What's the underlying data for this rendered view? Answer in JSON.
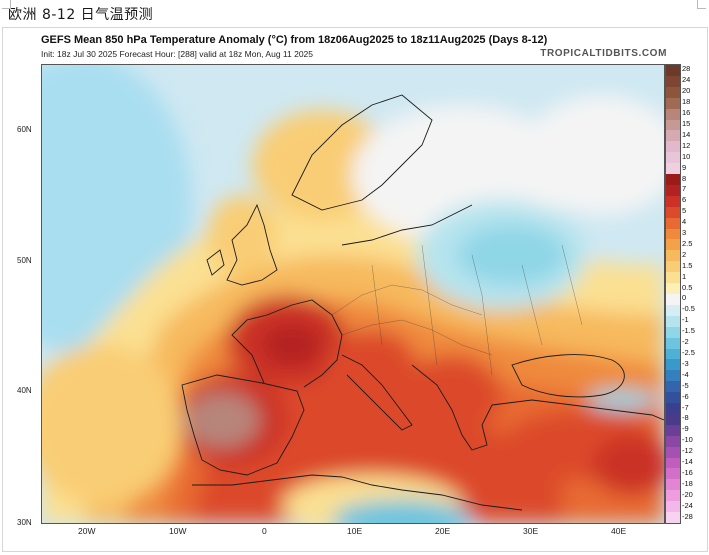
{
  "document": {
    "title": "欧洲 8-12 日气温预测"
  },
  "figure": {
    "title": "GEFS Mean 850 hPa Temperature Anomaly (°C) from 18z06Aug2025 to 18z11Aug2025 (Days 8-12)",
    "subtitle": "Init: 18z Jul 30 2025   Forecast Hour: [288]   valid at 18z Mon, Aug 11 2025",
    "brand": "TROPICALTIDBITS.COM"
  },
  "map": {
    "latitude_labels": [
      "60N",
      "50N",
      "40N",
      "30N"
    ],
    "longitude_labels": [
      "20W",
      "10W",
      "0",
      "10E",
      "20E",
      "30E",
      "40E"
    ],
    "colorbar": {
      "labels": [
        "28",
        "24",
        "20",
        "18",
        "16",
        "15",
        "14",
        "12",
        "10",
        "9",
        "8",
        "7",
        "6",
        "5",
        "4",
        "3",
        "2.5",
        "2",
        "1.5",
        "1",
        "0.5",
        "0",
        "-0.5",
        "-1",
        "-1.5",
        "-2",
        "-2.5",
        "-3",
        "-4",
        "-5",
        "-6",
        "-7",
        "-8",
        "-9",
        "-10",
        "-12",
        "-14",
        "-16",
        "-18",
        "-20",
        "-24",
        "-28"
      ],
      "colors": [
        "#6b3a2a",
        "#7d4632",
        "#8e553d",
        "#a06a55",
        "#b7857a",
        "#c79994",
        "#d6aab3",
        "#e2b9cc",
        "#e9c5da",
        "#f0cfe1",
        "#9b1b1b",
        "#b32222",
        "#cb3126",
        "#dc4a2c",
        "#e86a33",
        "#ef8a3c",
        "#f4a24a",
        "#f7b95d",
        "#f9cd75",
        "#fbe092",
        "#fcefb8",
        "#f4f4f4",
        "#d6eef3",
        "#b6e4ee",
        "#8fd6e7",
        "#6cc4df",
        "#4fb0d6",
        "#3b98cb",
        "#347fbd",
        "#3265ad",
        "#33509c",
        "#3a3f8f",
        "#4a3a8a",
        "#6a3f95",
        "#8a47a3",
        "#a651b1",
        "#c05dbd",
        "#d36fc8",
        "#e385d3",
        "#ee9dde",
        "#f4b8e8",
        "#f8d2f1"
      ]
    }
  }
}
